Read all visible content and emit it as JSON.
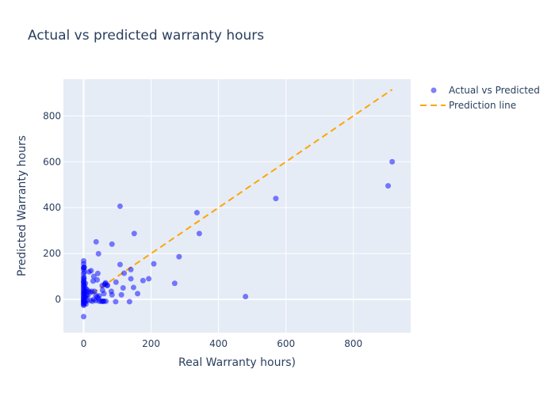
{
  "chart_data": {
    "type": "scatter",
    "title": "Actual vs predicted warranty hours",
    "xlabel": "Real Warranty hours)",
    "ylabel": "Predicted Warranty hours",
    "xlim": [
      -60,
      970
    ],
    "ylim": [
      -145,
      960
    ],
    "xticks": [
      0,
      200,
      400,
      600,
      800
    ],
    "yticks": [
      0,
      200,
      400,
      600,
      800
    ],
    "grid": true,
    "legend_position": "top-right",
    "colors": {
      "plot_bg": "#e5ecf6",
      "grid": "#ffffff",
      "points": "#0000ff",
      "line": "#ffa500",
      "text": "#2a3f5f"
    },
    "series": [
      {
        "name": "Actual vs Predicted",
        "mode": "markers",
        "points": [
          [
            915,
            600
          ],
          [
            903,
            495
          ],
          [
            570,
            440
          ],
          [
            336,
            378
          ],
          [
            343,
            287
          ],
          [
            480,
            12
          ],
          [
            108,
            406
          ],
          [
            150,
            287
          ],
          [
            84,
            241
          ],
          [
            37,
            251
          ],
          [
            44,
            199
          ],
          [
            283,
            186
          ],
          [
            208,
            155
          ],
          [
            108,
            152
          ],
          [
            140,
            130
          ],
          [
            120,
            114
          ],
          [
            193,
            90
          ],
          [
            176,
            82
          ],
          [
            140,
            90
          ],
          [
            96,
            75
          ],
          [
            270,
            70
          ],
          [
            148,
            52
          ],
          [
            117,
            50
          ],
          [
            64,
            68
          ],
          [
            70,
            62
          ],
          [
            56,
            40
          ],
          [
            60,
            25
          ],
          [
            160,
            25
          ],
          [
            112,
            20
          ],
          [
            82,
            35
          ],
          [
            84,
            20
          ],
          [
            95,
            -10
          ],
          [
            136,
            -10
          ],
          [
            46,
            -8
          ],
          [
            52,
            -8
          ],
          [
            55,
            -8
          ],
          [
            58,
            -8
          ],
          [
            60,
            -8
          ],
          [
            66,
            -8
          ],
          [
            40,
            10
          ],
          [
            46,
            15
          ],
          [
            36,
            -5
          ],
          [
            30,
            0
          ],
          [
            20,
            -5
          ],
          [
            16,
            35
          ],
          [
            20,
            30
          ],
          [
            24,
            35
          ],
          [
            32,
            35
          ],
          [
            40,
            85
          ],
          [
            28,
            80
          ],
          [
            30,
            100
          ],
          [
            42,
            113
          ],
          [
            22,
            125
          ],
          [
            16,
            120
          ],
          [
            62,
            65
          ],
          [
            65,
            72
          ],
          [
            55,
            60
          ],
          [
            70,
            60
          ],
          [
            36,
            18
          ],
          [
            44,
            5
          ],
          [
            26,
            -8
          ],
          [
            10,
            -5
          ],
          [
            12,
            15
          ],
          [
            8,
            20
          ],
          [
            0,
            -75
          ],
          [
            0,
            168
          ],
          [
            0,
            155
          ],
          [
            0,
            140
          ],
          [
            0,
            138
          ],
          [
            0,
            130
          ],
          [
            0,
            112
          ],
          [
            0,
            98
          ],
          [
            0,
            88
          ],
          [
            0,
            80
          ],
          [
            0,
            76
          ],
          [
            0,
            72
          ],
          [
            0,
            65
          ],
          [
            0,
            58
          ],
          [
            0,
            52
          ],
          [
            0,
            45
          ],
          [
            0,
            38
          ],
          [
            0,
            32
          ],
          [
            0,
            26
          ],
          [
            0,
            20
          ],
          [
            0,
            14
          ],
          [
            0,
            8
          ],
          [
            0,
            3
          ],
          [
            0,
            -2
          ],
          [
            0,
            -6
          ],
          [
            0,
            -10
          ],
          [
            0,
            -14
          ],
          [
            0,
            -18
          ],
          [
            0,
            -22
          ],
          [
            0,
            -26
          ],
          [
            2,
            140
          ],
          [
            2,
            120
          ],
          [
            2,
            60
          ],
          [
            3,
            40
          ],
          [
            3,
            12
          ],
          [
            4,
            -4
          ],
          [
            4,
            28
          ],
          [
            5,
            70
          ],
          [
            5,
            -12
          ],
          [
            6,
            48
          ],
          [
            6,
            10
          ],
          [
            7,
            -20
          ],
          [
            8,
            32
          ],
          [
            10,
            42
          ],
          [
            1,
            92
          ],
          [
            1,
            25
          ],
          [
            1,
            -8
          ]
        ]
      },
      {
        "name": "Prediction line",
        "mode": "lines",
        "dash": "dash",
        "points": [
          [
            0,
            0
          ],
          [
            915,
            915
          ]
        ]
      }
    ]
  }
}
